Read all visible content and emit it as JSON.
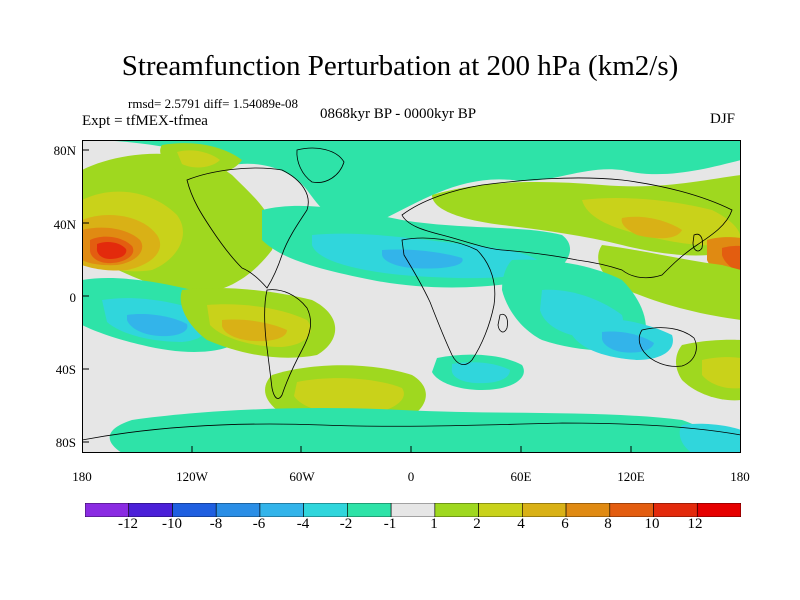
{
  "title": "Streamfunction Perturbation at 200 hPa (km2/s)",
  "stats": "rmsd= 2.5791  diff= 1.54089e-08",
  "experiment": "Expt = tfMEX-tfmea",
  "period": "0868kyr BP - 0000kyr BP",
  "season": "DJF",
  "lat_labels": [
    "80N",
    "40N",
    "0",
    "40S",
    "80S"
  ],
  "lon_labels": [
    "180",
    "120W",
    "60W",
    "0",
    "60E",
    "120E",
    "180"
  ],
  "legend": {
    "labels": [
      "-12",
      "-10",
      "-8",
      "-6",
      "-4",
      "-2",
      "-1",
      "1",
      "2",
      "4",
      "6",
      "8",
      "10",
      "12"
    ],
    "colors": [
      "#8a2be2",
      "#4b1fd8",
      "#1f5fe0",
      "#2a8ee6",
      "#33b4ea",
      "#30d6dc",
      "#2ee3a8",
      "#e6e6e6",
      "#9fd81f",
      "#c9d21a",
      "#d9b116",
      "#e08a12",
      "#e35d10",
      "#e32a0c",
      "#e60000"
    ]
  },
  "map_colors": {
    "neutral": "#e6e6e6",
    "pos1": "#9fd81f",
    "pos2": "#c9d21a",
    "pos3": "#d9b116",
    "pos4": "#e08a12",
    "pos5": "#e35d10",
    "pos6": "#e32a0c",
    "neg1": "#2ee3a8",
    "neg2": "#30d6dc",
    "neg3": "#33b4ea",
    "neg4": "#2a8ee6"
  }
}
